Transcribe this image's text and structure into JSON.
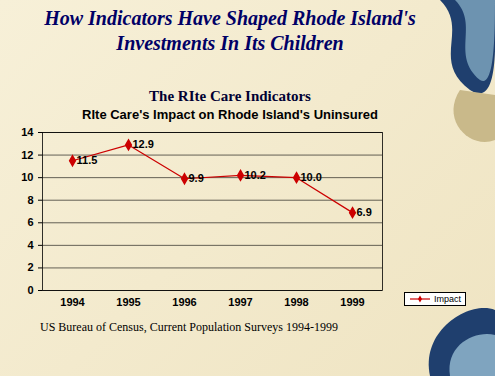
{
  "slide": {
    "title": "How Indicators Have Shaped Rhode Island's Investments In Its Children"
  },
  "chart_data": {
    "type": "line",
    "subtitle": "The RIte Care Indicators",
    "title": "RIte Care's Impact on Rhode Island's Uninsured",
    "categories": [
      "1994",
      "1995",
      "1996",
      "1997",
      "1998",
      "1999"
    ],
    "series": [
      {
        "name": "Impact",
        "color": "#cc0000",
        "marker": "diamond",
        "values": [
          11.5,
          12.9,
          9.9,
          10.2,
          10.0,
          6.9
        ],
        "value_labels": [
          "11.5",
          "12.9",
          "9.9",
          "10.2",
          "10.0",
          "6.9"
        ]
      }
    ],
    "ylim": [
      0,
      14
    ],
    "yticks": [
      0,
      2,
      4,
      6,
      8,
      10,
      12,
      14
    ],
    "grid": true,
    "data_labels": true,
    "legend": "bottom-right",
    "annotations": [
      "US Bureau of Census, Current Population Surveys 1994-1999"
    ]
  }
}
